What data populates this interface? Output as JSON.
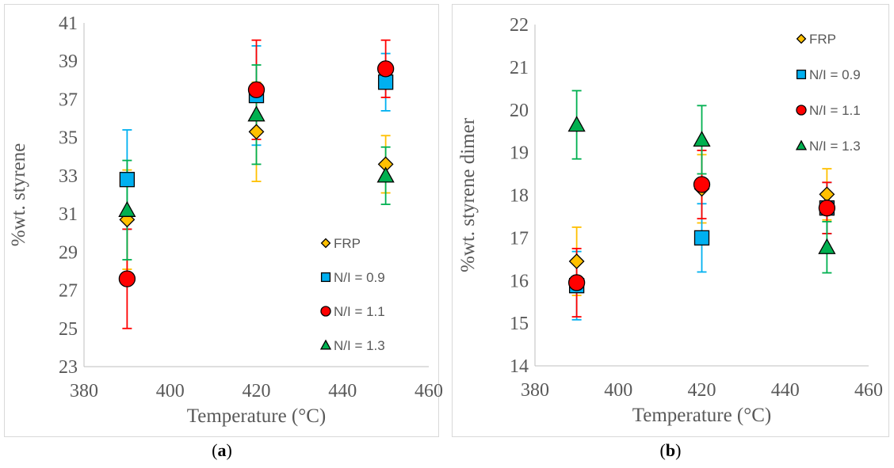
{
  "colors": {
    "FRP": "#FFC000",
    "N/I = 0.9": "#00B0F0",
    "N/I = 1.1": "#FF0000",
    "N/I = 1.3": "#00B050",
    "axis": "#bfbfbf",
    "text": "#595959"
  },
  "captions": {
    "a": "a",
    "b": "b"
  },
  "chart_data": [
    {
      "type": "scatter",
      "title": "",
      "xlabel": "Temperature (°C)",
      "ylabel": "%wt. styrene",
      "xlim": [
        380,
        460
      ],
      "ylim": [
        23,
        41
      ],
      "xticks": [
        "380",
        "400",
        "420",
        "440",
        "460"
      ],
      "yticks": [
        "23",
        "25",
        "27",
        "29",
        "31",
        "33",
        "35",
        "37",
        "39",
        "41"
      ],
      "legend_position": "bottom-right",
      "series": [
        {
          "name": "FRP",
          "marker": "diamond",
          "points": [
            {
              "x": 390,
              "y": 30.7,
              "err": 2.6
            },
            {
              "x": 420,
              "y": 35.3,
              "err": 2.6
            },
            {
              "x": 450,
              "y": 33.6,
              "err": 1.5
            }
          ]
        },
        {
          "name": "N/I = 0.9",
          "marker": "square",
          "points": [
            {
              "x": 390,
              "y": 32.8,
              "err": 2.6
            },
            {
              "x": 420,
              "y": 37.2,
              "err": 2.6
            },
            {
              "x": 450,
              "y": 37.9,
              "err": 1.5
            }
          ]
        },
        {
          "name": "N/I = 1.1",
          "marker": "circle",
          "points": [
            {
              "x": 390,
              "y": 27.6,
              "err": 2.6
            },
            {
              "x": 420,
              "y": 37.5,
              "err": 2.6
            },
            {
              "x": 450,
              "y": 38.6,
              "err": 1.5
            }
          ]
        },
        {
          "name": "N/I = 1.3",
          "marker": "triangle",
          "points": [
            {
              "x": 390,
              "y": 31.2,
              "err": 2.6
            },
            {
              "x": 420,
              "y": 36.2,
              "err": 2.6
            },
            {
              "x": 450,
              "y": 33.0,
              "err": 1.5
            }
          ]
        }
      ]
    },
    {
      "type": "scatter",
      "title": "",
      "xlabel": "Temperature (°C)",
      "ylabel": "%wt. styrene dimer",
      "xlim": [
        380,
        460
      ],
      "ylim": [
        14,
        22
      ],
      "xticks": [
        "380",
        "400",
        "420",
        "440",
        "460"
      ],
      "yticks": [
        "14",
        "15",
        "16",
        "17",
        "18",
        "19",
        "20",
        "21",
        "22"
      ],
      "legend_position": "top-right",
      "series": [
        {
          "name": "FRP",
          "marker": "diamond",
          "points": [
            {
              "x": 390,
              "y": 16.45,
              "err": 0.8
            },
            {
              "x": 420,
              "y": 18.15,
              "err": 0.8
            },
            {
              "x": 450,
              "y": 18.02,
              "err": 0.6
            }
          ]
        },
        {
          "name": "N/I = 0.9",
          "marker": "square",
          "points": [
            {
              "x": 390,
              "y": 15.88,
              "err": 0.8
            },
            {
              "x": 420,
              "y": 17.0,
              "err": 0.8
            },
            {
              "x": 450,
              "y": 17.7,
              "err": 0.6
            }
          ]
        },
        {
          "name": "N/I = 1.1",
          "marker": "circle",
          "points": [
            {
              "x": 390,
              "y": 15.95,
              "err": 0.8
            },
            {
              "x": 420,
              "y": 18.25,
              "err": 0.8
            },
            {
              "x": 450,
              "y": 17.7,
              "err": 0.6
            }
          ]
        },
        {
          "name": "N/I = 1.3",
          "marker": "triangle",
          "points": [
            {
              "x": 390,
              "y": 19.65,
              "err": 0.8
            },
            {
              "x": 420,
              "y": 19.3,
              "err": 0.8
            },
            {
              "x": 450,
              "y": 16.78,
              "err": 0.6
            }
          ]
        }
      ]
    }
  ]
}
